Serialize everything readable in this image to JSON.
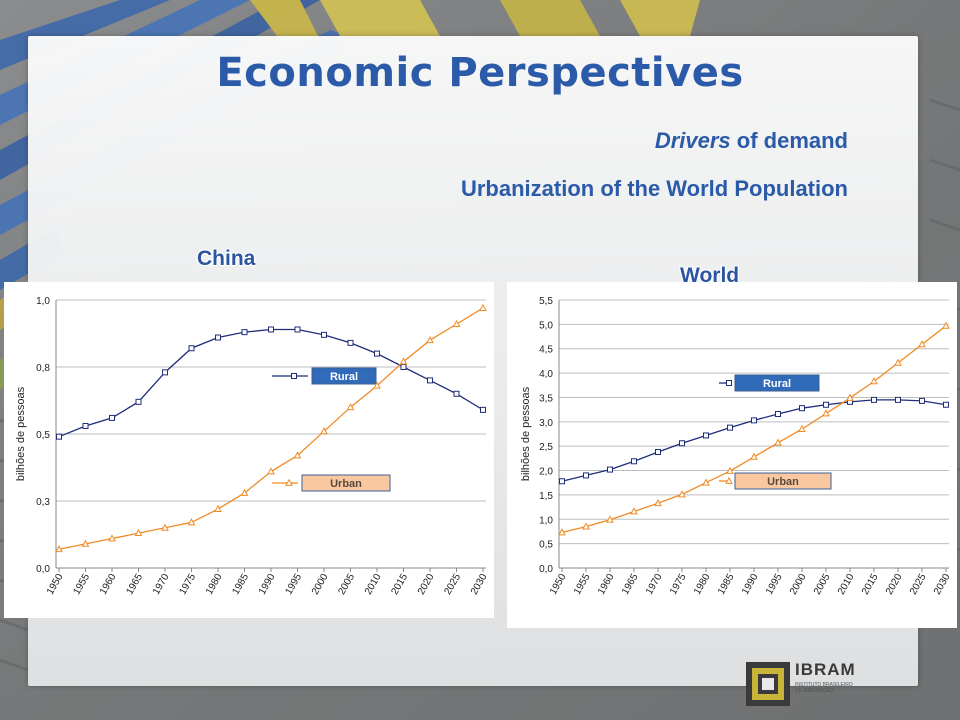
{
  "slide": {
    "title": "Economic Perspectives",
    "subtitle_italic": "Drivers",
    "subtitle_rest": " of demand",
    "subtitle2": "Urbanization of the World Population",
    "logo_text": "IBRAM",
    "logo_small": "INSTITUTO BRASILEIRO DE MINERAÇÃO",
    "colors": {
      "title": "#2a5aa8",
      "rural": "#1f2d7a",
      "urban": "#f08a24",
      "rural_label_bg": "#2f6bb8",
      "urban_label_bg": "#f9c7a0"
    }
  },
  "chart_data": [
    {
      "type": "line",
      "title": "China",
      "ylabel": "bilhões de pessoas",
      "ylim": [
        0,
        1.0
      ],
      "yticks": [
        "0,0",
        "0,3",
        "0,5",
        "0,8",
        "1,0"
      ],
      "x": [
        "1950",
        "1955",
        "1960",
        "1965",
        "1970",
        "1975",
        "1980",
        "1985",
        "1990",
        "1995",
        "2000",
        "2005",
        "2010",
        "2015",
        "2020",
        "2025",
        "2030"
      ],
      "series": [
        {
          "name": "Rural",
          "marker": "square",
          "values": [
            0.49,
            0.53,
            0.56,
            0.62,
            0.73,
            0.82,
            0.86,
            0.88,
            0.89,
            0.89,
            0.87,
            0.84,
            0.8,
            0.75,
            0.7,
            0.65,
            0.59
          ]
        },
        {
          "name": "Urban",
          "marker": "triangle",
          "values": [
            0.07,
            0.09,
            0.11,
            0.13,
            0.15,
            0.17,
            0.22,
            0.28,
            0.36,
            0.42,
            0.51,
            0.6,
            0.68,
            0.77,
            0.85,
            0.91,
            0.97
          ]
        }
      ],
      "legend": "inline"
    },
    {
      "type": "line",
      "title": "World",
      "ylabel": "bilhões de pessoas",
      "ylim": [
        0,
        5.5
      ],
      "yticks": [
        "0,0",
        "0,5",
        "1,0",
        "1,5",
        "2,0",
        "2,5",
        "3,0",
        "3,5",
        "4,0",
        "4,5",
        "5,0",
        "5,5"
      ],
      "x": [
        "1950",
        "1955",
        "1960",
        "1965",
        "1970",
        "1975",
        "1980",
        "1985",
        "1990",
        "1995",
        "2000",
        "2005",
        "2010",
        "2015",
        "2020",
        "2025",
        "2030"
      ],
      "series": [
        {
          "name": "Rural",
          "marker": "square",
          "values": [
            1.78,
            1.9,
            2.02,
            2.19,
            2.38,
            2.56,
            2.72,
            2.88,
            3.03,
            3.16,
            3.28,
            3.35,
            3.41,
            3.45,
            3.45,
            3.43,
            3.35
          ]
        },
        {
          "name": "Urban",
          "marker": "triangle",
          "values": [
            0.73,
            0.85,
            0.99,
            1.16,
            1.33,
            1.51,
            1.75,
            1.99,
            2.28,
            2.57,
            2.85,
            3.17,
            3.49,
            3.83,
            4.21,
            4.59,
            4.97
          ]
        }
      ],
      "legend": "inline"
    }
  ]
}
